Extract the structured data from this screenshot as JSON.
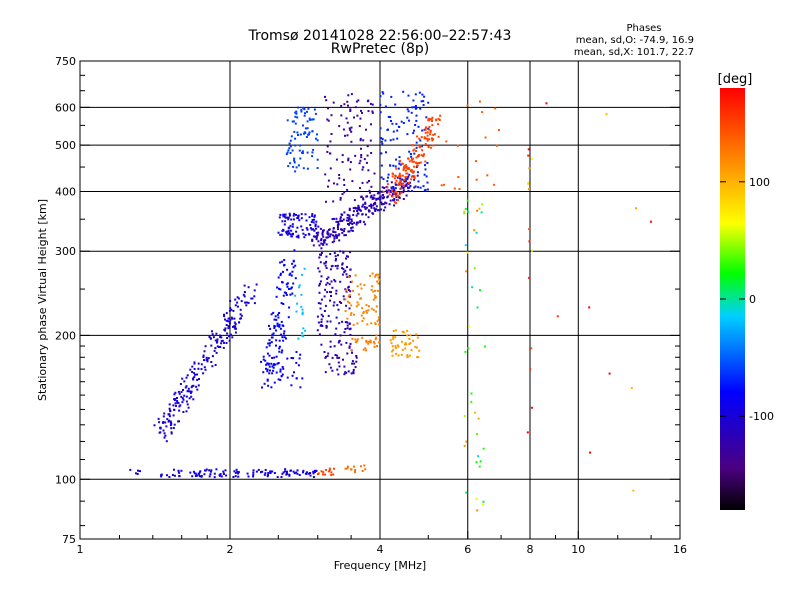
{
  "chart_data": {
    "type": "scatter",
    "title": "Tromsø 20141028 22:56:00–22:57:43",
    "subtitle": "RwPretec (8p)",
    "phases_title": "Phases",
    "phases_line_o": "mean, sd,O: -74.9, 16.9",
    "phases_line_x": "mean, sd,X: 101.7, 22.7",
    "xlabel": "Frequency [MHz]",
    "ylabel": "Stationary phase Virtual Height [km]",
    "xscale": "log",
    "yscale": "log",
    "xlim": [
      1,
      16
    ],
    "ylim": [
      75,
      750
    ],
    "xticks": [
      1,
      2,
      4,
      6,
      8,
      10,
      16
    ],
    "xgrid": [
      2,
      4,
      6,
      8,
      10
    ],
    "yticks": [
      75,
      100,
      200,
      300,
      400,
      500,
      600,
      750
    ],
    "ygrid": [
      100,
      200,
      300,
      400,
      500,
      600
    ],
    "grid": true,
    "colorbar": {
      "label": "[deg]",
      "min": -180,
      "max": 180,
      "ticks": [
        100,
        0,
        -100
      ]
    },
    "clusters": [
      {
        "f": [
          1.25,
          1.32
        ],
        "h": [
          102,
          105
        ],
        "phase": -95,
        "n": 5,
        "shape": "band"
      },
      {
        "f": [
          1.45,
          3.0
        ],
        "h": [
          101,
          105
        ],
        "phase": -95,
        "n": 120,
        "shape": "band"
      },
      {
        "f": [
          3.0,
          3.25
        ],
        "h": [
          102,
          106
        ],
        "phase": 150,
        "n": 14,
        "shape": "band"
      },
      {
        "f": [
          3.4,
          3.75
        ],
        "h": [
          103,
          107
        ],
        "phase": 130,
        "n": 12,
        "shape": "band"
      },
      {
        "f": [
          1.45,
          2.2
        ],
        "h": [
          125,
          250
        ],
        "phase": -100,
        "n": 230,
        "shape": "trace",
        "f0": 1.45,
        "h0": 125,
        "f1": 2.2,
        "h1": 250
      },
      {
        "f": [
          2.35,
          2.7
        ],
        "h": [
          160,
          300
        ],
        "phase": -80,
        "n": 110,
        "shape": "trace",
        "f0": 2.4,
        "h0": 165,
        "f1": 2.65,
        "h1": 295
      },
      {
        "f": [
          2.3,
          2.8
        ],
        "h": [
          155,
          185
        ],
        "phase": -85,
        "n": 45,
        "shape": "blob"
      },
      {
        "f": [
          2.7,
          2.85
        ],
        "h": [
          190,
          280
        ],
        "phase": -20,
        "n": 18,
        "shape": "blob"
      },
      {
        "f": [
          3.0,
          3.5
        ],
        "h": [
          200,
          300
        ],
        "phase": -115,
        "n": 130,
        "shape": "blob"
      },
      {
        "f": [
          3.05,
          3.6
        ],
        "h": [
          165,
          195
        ],
        "phase": -120,
        "n": 50,
        "shape": "blob"
      },
      {
        "f": [
          3.4,
          4.0
        ],
        "h": [
          210,
          270
        ],
        "phase": 120,
        "n": 70,
        "shape": "blob"
      },
      {
        "f": [
          3.5,
          4.0
        ],
        "h": [
          185,
          200
        ],
        "phase": 125,
        "n": 25,
        "shape": "blob"
      },
      {
        "f": [
          4.2,
          4.8
        ],
        "h": [
          180,
          205
        ],
        "phase": 110,
        "n": 45,
        "shape": "blob"
      },
      {
        "f": [
          2.5,
          3.0
        ],
        "h": [
          320,
          360
        ],
        "phase": -95,
        "n": 90,
        "shape": "blob"
      },
      {
        "f": [
          2.6,
          3.0
        ],
        "h": [
          440,
          600
        ],
        "phase": -60,
        "n": 80,
        "shape": "blob"
      },
      {
        "f": [
          3.0,
          4.6
        ],
        "h": [
          310,
          420
        ],
        "phase": -115,
        "n": 280,
        "shape": "trace",
        "f0": 3.0,
        "h0": 315,
        "f1": 4.6,
        "h1": 420
      },
      {
        "f": [
          3.1,
          3.9
        ],
        "h": [
          380,
          640
        ],
        "phase": -130,
        "n": 110,
        "shape": "blob"
      },
      {
        "f": [
          4.0,
          5.0
        ],
        "h": [
          400,
          650
        ],
        "phase": -70,
        "n": 120,
        "shape": "blob"
      },
      {
        "f": [
          4.2,
          5.3
        ],
        "h": [
          380,
          560
        ],
        "phase": 150,
        "n": 150,
        "shape": "trace",
        "f0": 4.2,
        "h0": 390,
        "f1": 5.2,
        "h1": 560
      },
      {
        "f": [
          5.3,
          7.0
        ],
        "h": [
          400,
          650
        ],
        "phase": 140,
        "n": 18,
        "shape": "blob"
      },
      {
        "f": [
          5.9,
          6.5
        ],
        "h": [
          85,
          400
        ],
        "phase": 60,
        "n": 40,
        "shape": "scatter"
      },
      {
        "f": [
          7.9,
          8.1
        ],
        "h": [
          100,
          500
        ],
        "phase": 120,
        "n": 15,
        "shape": "scatter"
      },
      {
        "f": [
          8.5,
          14.5
        ],
        "h": [
          90,
          650
        ],
        "phase": 160,
        "n": 10,
        "shape": "scatter"
      }
    ]
  }
}
